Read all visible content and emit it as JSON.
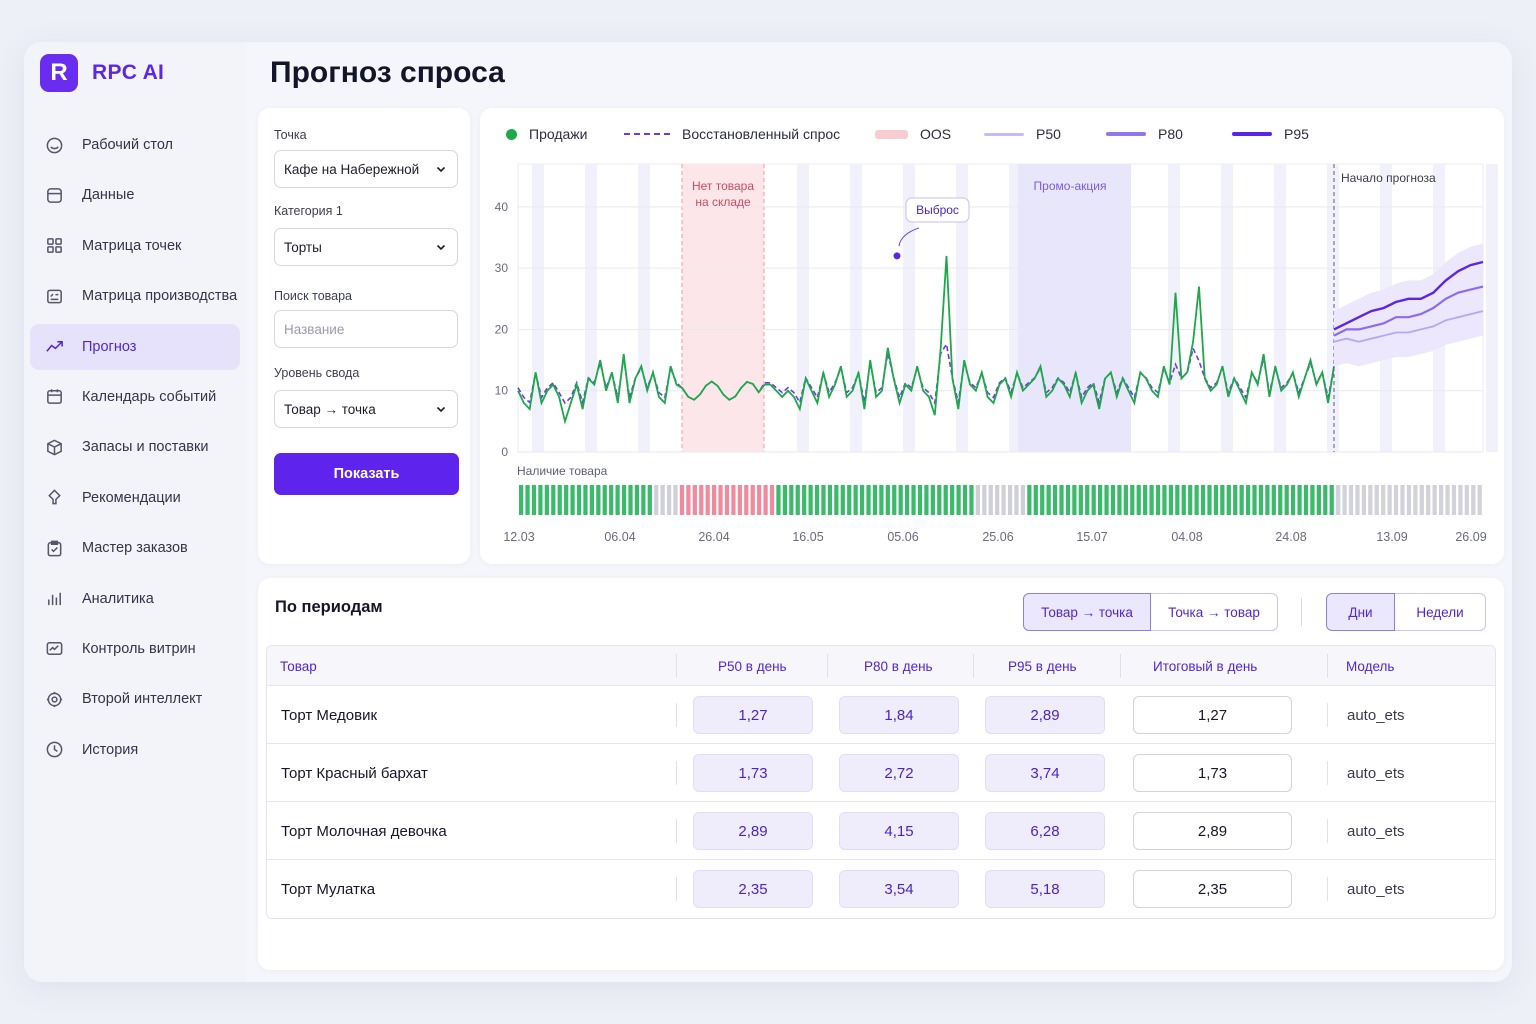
{
  "app": {
    "brand_letter": "R",
    "brand_name": "RPC AI",
    "page_title": "Прогноз спроса"
  },
  "sidebar": {
    "items": [
      {
        "label": "Рабочий стол",
        "icon": "dashboard-icon"
      },
      {
        "label": "Данные",
        "icon": "database-icon"
      },
      {
        "label": "Матрица точек",
        "icon": "grid-icon"
      },
      {
        "label": "Матрица производства",
        "icon": "production-icon"
      },
      {
        "label": "Прогноз",
        "icon": "trend-icon",
        "active": true
      },
      {
        "label": "Календарь событий",
        "icon": "calendar-icon"
      },
      {
        "label": "Запасы и поставки",
        "icon": "box-icon"
      },
      {
        "label": "Рекомендации",
        "icon": "lightbulb-icon"
      },
      {
        "label": "Мастер заказов",
        "icon": "clipboard-icon"
      },
      {
        "label": "Аналитика",
        "icon": "bar-chart-icon"
      },
      {
        "label": "Контроль витрин",
        "icon": "showcase-icon"
      },
      {
        "label": "Второй интеллект",
        "icon": "brain-icon"
      },
      {
        "label": "История",
        "icon": "clock-icon"
      }
    ]
  },
  "filters": {
    "point_label": "Точка",
    "point_value": "Кафе на Набережной",
    "category_label": "Категория 1",
    "category_value": "Торты",
    "search_label": "Поиск товара",
    "search_placeholder": "Название",
    "level_label": "Уровень свода",
    "level_value": "Товар → точка",
    "show_button": "Показать"
  },
  "chart_data": {
    "type": "line",
    "legend": {
      "sales": "Продажи",
      "restored": "Восстановленный спрос",
      "oos": "OOS",
      "p50": "P50",
      "p80": "P80",
      "p95": "P95"
    },
    "x_ticks": [
      "12.03",
      "06.04",
      "26.04",
      "16.05",
      "05.06",
      "25.06",
      "15.07",
      "04.08",
      "24.08",
      "13.09",
      "26.09"
    ],
    "y_ticks": [
      0,
      10,
      20,
      30,
      40
    ],
    "ylim": [
      0,
      47
    ],
    "annotations": {
      "oos_region": "Нет товара на складе",
      "oos_line1": "Нет товара",
      "oos_line2": "на складе",
      "outlier": "Выброс",
      "promo": "Промо-акция",
      "forecast_start": "Начало прогноза"
    },
    "outlier_value": 32,
    "stock_label": "Наличие товара",
    "sales": [
      10,
      8,
      7,
      13,
      8,
      10,
      11,
      9,
      5,
      8,
      11,
      7,
      12,
      11,
      15,
      10,
      13,
      8,
      16,
      8,
      12,
      14,
      10,
      13,
      9,
      8,
      14,
      11,
      15,
      11,
      10,
      8,
      12,
      10,
      6,
      10,
      9,
      11,
      16,
      10,
      12,
      10,
      11,
      11,
      10,
      9,
      10
    ],
    "sales_tail": [
      9,
      7,
      12,
      10,
      8,
      13,
      9,
      11,
      14,
      9,
      10,
      13,
      7,
      15,
      9,
      10,
      17,
      12,
      8,
      11,
      10,
      14,
      10,
      9,
      6,
      17,
      32,
      12,
      7,
      15,
      11,
      10,
      13,
      9,
      8,
      11,
      12,
      9,
      13,
      10,
      11,
      12,
      14,
      9,
      10,
      12,
      11,
      9,
      13,
      8,
      10,
      11,
      7,
      12,
      13,
      9,
      12,
      10,
      8,
      13,
      12,
      10,
      9,
      14,
      11,
      26,
      12,
      13,
      18,
      27,
      12,
      10,
      11,
      14,
      9,
      12,
      10,
      8,
      13,
      11,
      16,
      9,
      14,
      10,
      11,
      13,
      9,
      12,
      15,
      11,
      13,
      8,
      14
    ],
    "forecast": {
      "p50": [
        18,
        18.5,
        18,
        18.5,
        19,
        19.5,
        19.5,
        20,
        20.5,
        21.5,
        22,
        22.5,
        23
      ],
      "p80": [
        19,
        20,
        20,
        20.5,
        21,
        22,
        22,
        22.5,
        23.5,
        25,
        26,
        26.5,
        27
      ],
      "p95": [
        20,
        21,
        22,
        23,
        23.5,
        24.5,
        25,
        25,
        26,
        28,
        29.5,
        30.5,
        31
      ]
    }
  },
  "periods": {
    "title": "По периодам",
    "toggle_level": [
      "Товар → точка",
      "Точка → товар"
    ],
    "toggle_granularity": [
      "Дни",
      "Недели"
    ],
    "columns": [
      "Товар",
      "P50 в день",
      "P80 в день",
      "P95 в день",
      "Итоговый в день",
      "Модель"
    ],
    "rows": [
      {
        "name": "Торт Медовик",
        "p50": "1,27",
        "p80": "1,84",
        "p95": "2,89",
        "total": "1,27",
        "model": "auto_ets"
      },
      {
        "name": "Торт Красный бархат",
        "p50": "1,73",
        "p80": "2,72",
        "p95": "3,74",
        "total": "1,73",
        "model": "auto_ets"
      },
      {
        "name": "Торт Молочная девочка",
        "p50": "2,89",
        "p80": "4,15",
        "p95": "6,28",
        "total": "2,89",
        "model": "auto_ets"
      },
      {
        "name": "Торт Мулатка",
        "p50": "2,35",
        "p80": "3,54",
        "p95": "5,18",
        "total": "2,35",
        "model": "auto_ets"
      }
    ]
  },
  "colors": {
    "accent": "#5f23ee",
    "sales": "#1ea84a",
    "oos": "#f5c9cf",
    "p50": "#b7a6f5",
    "p80": "#8b6cf0",
    "p95": "#5b25e6"
  }
}
